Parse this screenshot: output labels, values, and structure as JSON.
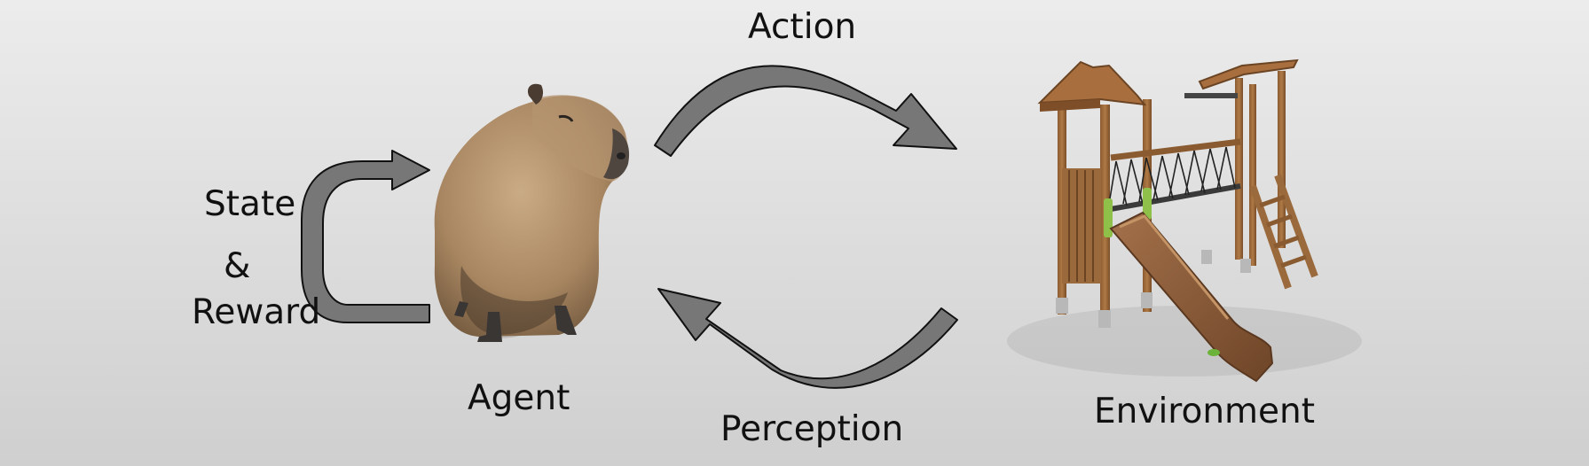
{
  "diagram": {
    "labels": {
      "action": "Action",
      "perception": "Perception",
      "agent": "Agent",
      "environment": "Environment",
      "state": "State",
      "ampersand": "&",
      "reward": "Reward"
    },
    "images": {
      "agent": "capybara",
      "environment": "wooden-playground-with-slide"
    },
    "colors": {
      "arrow_fill": "#777777",
      "arrow_stroke": "#111111",
      "background": "#e2e2e2"
    }
  }
}
